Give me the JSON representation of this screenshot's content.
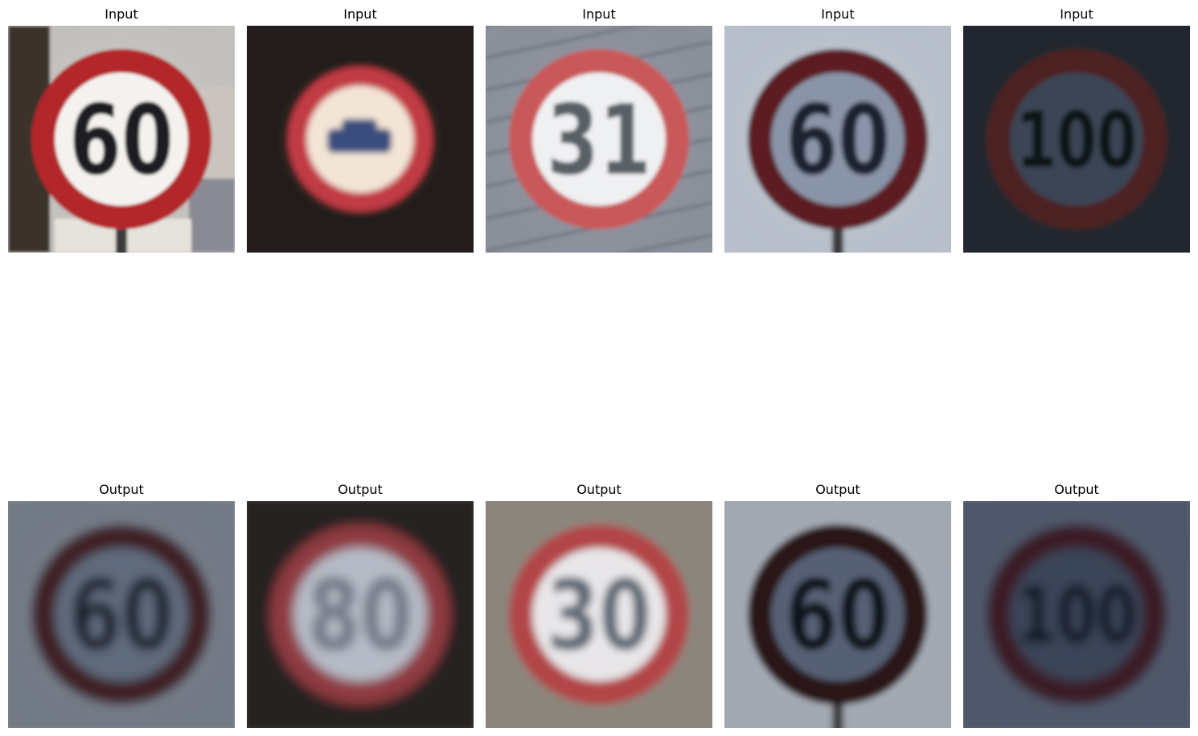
{
  "rows": [
    {
      "label": "Input",
      "panels": [
        {
          "title": "Input",
          "sign_text": "60",
          "bg": "#e9e7e2",
          "ring": "#b3262a",
          "inner": "#f4f2ee",
          "digit": "#1f1f23",
          "blur": 0.6,
          "post": true,
          "left_dark": true
        },
        {
          "title": "Input",
          "sign_text": "",
          "bg": "#2b2520",
          "ring": "#c13a44",
          "inner": "#f3e5d6",
          "digit": "#3b4d7f",
          "blur": 1.2,
          "post": false,
          "car": true
        },
        {
          "title": "Input",
          "sign_text": "31",
          "bg": "#a7adba",
          "ring": "#c9585a",
          "inner": "#eff0f2",
          "digit": "#586066",
          "blur": 0.8,
          "post": false,
          "stripes": true
        },
        {
          "title": "Input",
          "sign_text": "60",
          "bg": "#dce6f3",
          "ring": "#5b1b22",
          "inner": "#8a94a8",
          "digit": "#1d2432",
          "blur": 0.9,
          "post": true
        },
        {
          "title": "Input",
          "sign_text": "100",
          "bg": "#2b3038",
          "ring": "#4d2024",
          "inner": "#3a4555",
          "digit": "#0f1319",
          "blur": 0.9,
          "post": false
        }
      ]
    },
    {
      "label": "Output",
      "panels": [
        {
          "title": "Output",
          "sign_text": "60",
          "bg": "#8a93a1",
          "ring": "#3f2128",
          "inner": "#5f6a7c",
          "digit": "#1b2130",
          "blur": 2.0,
          "post": false
        },
        {
          "title": "Output",
          "sign_text": "80",
          "bg": "#2d2726",
          "ring": "#8e3a3f",
          "inner": "#b5bcc7",
          "digit": "#6c7481",
          "blur": 2.2,
          "post": false
        },
        {
          "title": "Output",
          "sign_text": "30",
          "bg": "#a79f94",
          "ring": "#b24447",
          "inner": "#e8e6e8",
          "digit": "#5e6773",
          "blur": 1.6,
          "post": false
        },
        {
          "title": "Output",
          "sign_text": "60",
          "bg": "#c3cad5",
          "ring": "#2c1315",
          "inner": "#566174",
          "digit": "#0f141d",
          "blur": 1.3,
          "post": true
        },
        {
          "title": "Output",
          "sign_text": "100",
          "bg": "#5f6a80",
          "ring": "#3b1c27",
          "inner": "#3a4458",
          "digit": "#101522",
          "blur": 2.0,
          "post": false
        }
      ]
    }
  ]
}
